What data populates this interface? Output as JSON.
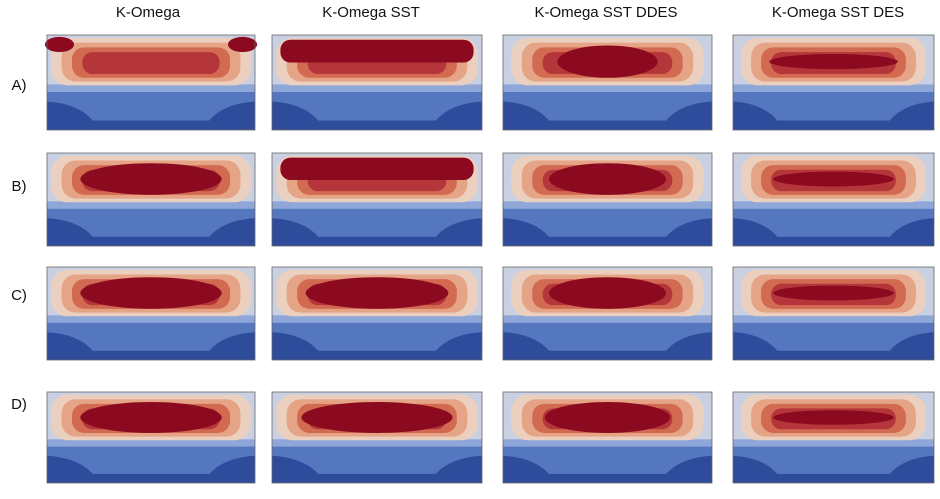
{
  "headers": [
    "K-Omega",
    "K-Omega SST",
    "K-Omega SST DDES",
    "K-Omega SST DES"
  ],
  "rows": [
    "A)",
    "B)",
    "C)",
    "D)"
  ]
}
